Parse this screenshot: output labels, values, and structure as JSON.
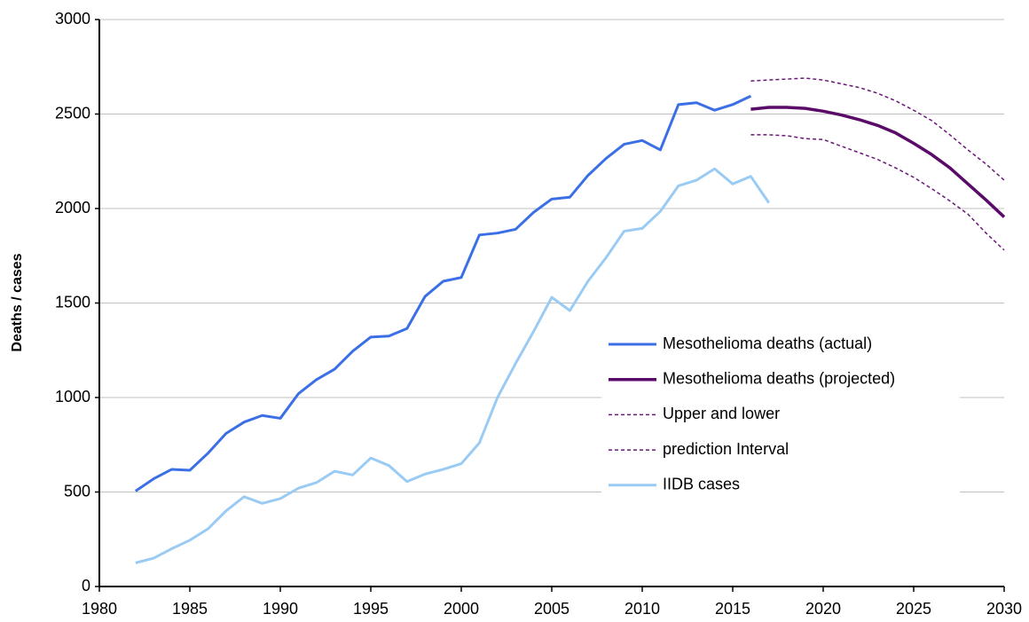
{
  "chart_data": {
    "type": "line",
    "y_label": "Deaths / cases",
    "xlim": [
      1980,
      2030
    ],
    "xticks": [
      1980,
      1985,
      1990,
      1995,
      2000,
      2005,
      2010,
      2015,
      2020,
      2025,
      2030
    ],
    "ylim": [
      0,
      3000
    ],
    "yticks": [
      0,
      500,
      1000,
      1500,
      2000,
      2500,
      3000
    ],
    "grid": true,
    "series": [
      {
        "name": "Mesothelioma deaths (actual)",
        "color": "#3b6fe6",
        "width": 3,
        "dashed": false,
        "x": [
          1982,
          1983,
          1984,
          1985,
          1986,
          1987,
          1988,
          1989,
          1990,
          1991,
          1992,
          1993,
          1994,
          1995,
          1996,
          1997,
          1998,
          1999,
          2000,
          2001,
          2002,
          2003,
          2004,
          2005,
          2006,
          2007,
          2008,
          2009,
          2010,
          2011,
          2012,
          2013,
          2014,
          2015,
          2016
        ],
        "values": [
          505,
          570,
          620,
          615,
          705,
          810,
          870,
          905,
          890,
          1020,
          1095,
          1150,
          1245,
          1320,
          1325,
          1365,
          1535,
          1615,
          1635,
          1860,
          1870,
          1890,
          1980,
          2050,
          2060,
          2175,
          2265,
          2340,
          2360,
          2310,
          2550,
          2560,
          2520,
          2550,
          2595
        ]
      },
      {
        "name": "Mesothelioma deaths (projected)",
        "color": "#5a0a68",
        "width": 3.5,
        "dashed": false,
        "x": [
          2016,
          2017,
          2018,
          2019,
          2020,
          2021,
          2022,
          2023,
          2024,
          2025,
          2026,
          2027,
          2028,
          2029,
          2030
        ],
        "values": [
          2525,
          2535,
          2535,
          2530,
          2515,
          2495,
          2470,
          2440,
          2400,
          2345,
          2285,
          2215,
          2130,
          2045,
          1955
        ]
      },
      {
        "name": "Upper and lower",
        "color": "#6a1878",
        "width": 1.5,
        "dashed": true,
        "x": [
          2016,
          2017,
          2018,
          2019,
          2020,
          2021,
          2022,
          2023,
          2024,
          2025,
          2026,
          2027,
          2028,
          2029,
          2030
        ],
        "values": [
          2675,
          2680,
          2685,
          2690,
          2680,
          2660,
          2640,
          2610,
          2570,
          2520,
          2465,
          2390,
          2310,
          2235,
          2150
        ]
      },
      {
        "name": "prediction Interval",
        "color": "#6a1878",
        "width": 1.5,
        "dashed": true,
        "x": [
          2016,
          2017,
          2018,
          2019,
          2020,
          2021,
          2022,
          2023,
          2024,
          2025,
          2026,
          2027,
          2028,
          2029,
          2030
        ],
        "values": [
          2390,
          2390,
          2385,
          2370,
          2365,
          2330,
          2295,
          2260,
          2215,
          2165,
          2105,
          2040,
          1970,
          1870,
          1780
        ]
      },
      {
        "name": "IIDB cases",
        "color": "#9acbf4",
        "width": 3,
        "dashed": false,
        "x": [
          1982,
          1983,
          1984,
          1985,
          1986,
          1987,
          1988,
          1989,
          1990,
          1991,
          1992,
          1993,
          1994,
          1995,
          1996,
          1997,
          1998,
          1999,
          2000,
          2001,
          2002,
          2003,
          2004,
          2005,
          2006,
          2007,
          2008,
          2009,
          2010,
          2011,
          2012,
          2013,
          2014,
          2015,
          2016,
          2017
        ],
        "values": [
          125,
          150,
          200,
          245,
          305,
          400,
          475,
          440,
          465,
          520,
          550,
          610,
          590,
          680,
          640,
          555,
          595,
          620,
          650,
          760,
          1000,
          1180,
          1350,
          1530,
          1460,
          1615,
          1740,
          1880,
          1895,
          1985,
          2120,
          2150,
          2210,
          2130,
          2170,
          2030
        ]
      }
    ]
  }
}
